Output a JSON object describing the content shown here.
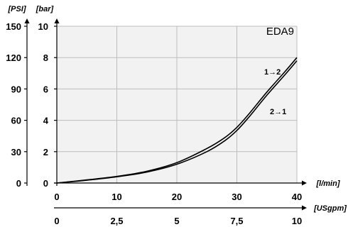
{
  "chart_data": {
    "type": "line",
    "title": "EDA9",
    "x_primary": {
      "unit_label": "[l/min]",
      "range": [
        0,
        40
      ],
      "ticks": [
        0,
        10,
        20,
        30,
        40
      ],
      "tick_labels": [
        "0",
        "10",
        "20",
        "30",
        "40"
      ]
    },
    "x_secondary": {
      "unit_label": "[USgpm]",
      "tick_labels": [
        "0",
        "2,5",
        "5",
        "7,5",
        "10"
      ]
    },
    "y_primary": {
      "unit_label": "[bar]",
      "range": [
        0,
        10
      ],
      "ticks": [
        0,
        2,
        4,
        6,
        8,
        10
      ],
      "tick_labels": [
        "0",
        "2",
        "4",
        "6",
        "8",
        "10"
      ]
    },
    "y_secondary": {
      "unit_label": "[PSI]",
      "tick_labels": [
        "0",
        "30",
        "60",
        "90",
        "120",
        "150"
      ]
    },
    "grid": true,
    "series": [
      {
        "name": "1→2",
        "x": [
          0,
          5,
          10,
          15,
          20,
          25,
          28,
          30,
          32,
          35,
          38,
          40
        ],
        "y": [
          0,
          0.2,
          0.42,
          0.75,
          1.3,
          2.2,
          2.9,
          3.55,
          4.4,
          5.8,
          7.1,
          8.0
        ]
      },
      {
        "name": "2→1",
        "x": [
          0,
          5,
          10,
          15,
          20,
          25,
          28,
          30,
          32,
          35,
          38,
          40
        ],
        "y": [
          0,
          0.18,
          0.4,
          0.7,
          1.2,
          2.0,
          2.7,
          3.35,
          4.2,
          5.6,
          6.9,
          7.8
        ]
      }
    ]
  }
}
